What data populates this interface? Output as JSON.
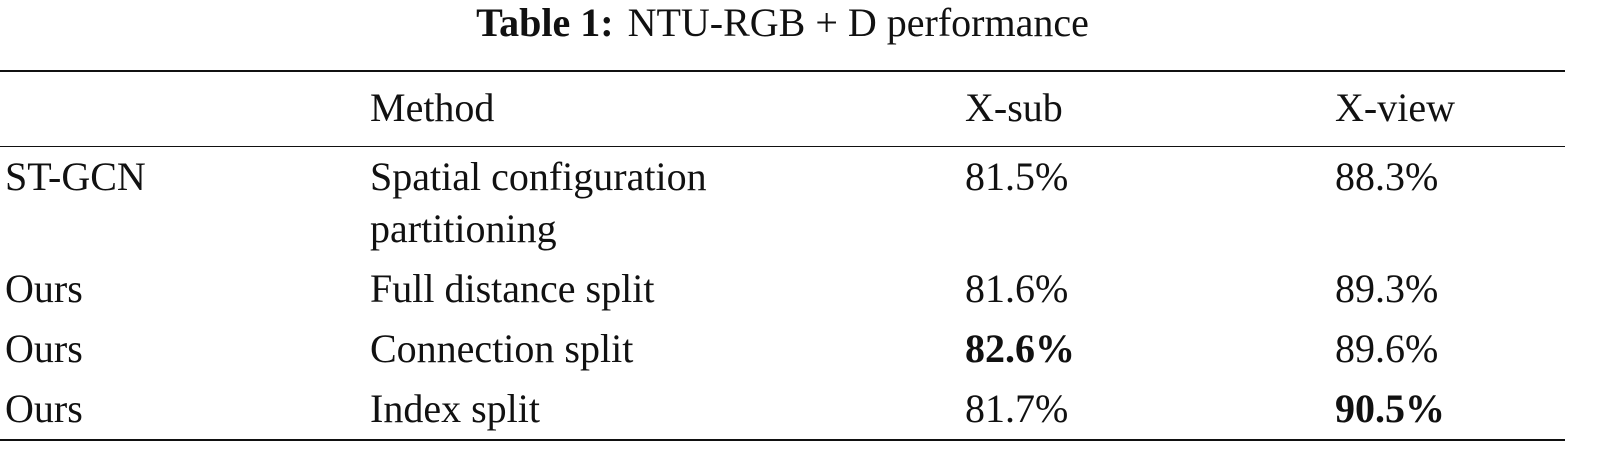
{
  "caption": {
    "label": "Table 1:",
    "text": "NTU-RGB + D performance"
  },
  "table": {
    "header": [
      "Method",
      "X-sub",
      "X-view"
    ],
    "rows": [
      [
        "ST-GCN",
        "Spatial configuration partitioning",
        "81.5%",
        "88.3%"
      ],
      [
        "Ours",
        "Full distance split",
        "81.6%",
        "89.3%"
      ],
      [
        "Ours",
        "Connection split",
        "82.6%",
        "89.6%"
      ],
      [
        "Ours",
        "Index split",
        "81.7%",
        "90.5%"
      ]
    ]
  }
}
